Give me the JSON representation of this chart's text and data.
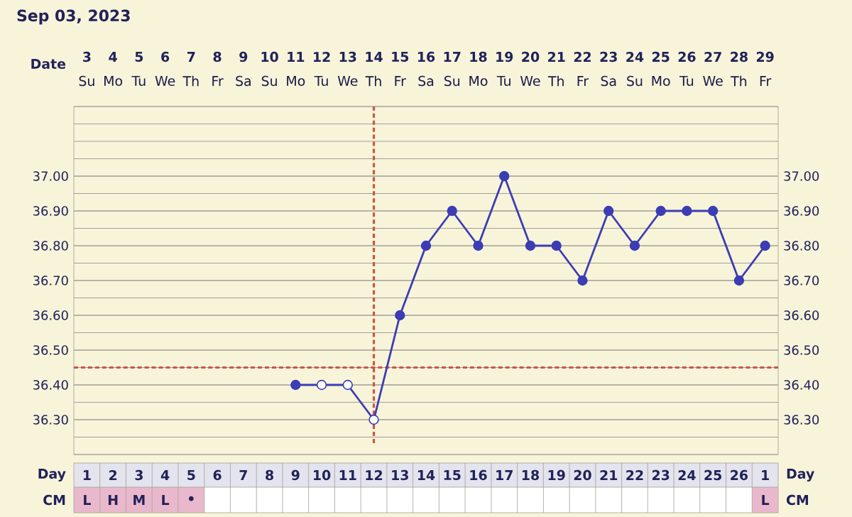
{
  "chart_data": {
    "type": "line",
    "title": "Sep 03, 2023",
    "categories": [
      "3",
      "4",
      "5",
      "6",
      "7",
      "8",
      "9",
      "10",
      "11",
      "12",
      "13",
      "14",
      "15",
      "16",
      "17",
      "18",
      "19",
      "20",
      "21",
      "22",
      "23",
      "24",
      "25",
      "26",
      "27",
      "28",
      "29"
    ],
    "series": [
      {
        "color": "#3c3cb4",
        "marker": "circle",
        "values": [
          null,
          null,
          null,
          null,
          null,
          null,
          null,
          null,
          36.4,
          36.4,
          36.4,
          36.3,
          36.6,
          36.8,
          36.9,
          36.8,
          37.0,
          36.8,
          36.8,
          36.7,
          36.9,
          36.8,
          36.9,
          36.9,
          36.9,
          36.7,
          36.8
        ],
        "colors": [
          "#3c3cb4",
          "#3c3cb4",
          "#3c3cb4",
          "#3c3cb4",
          "#3c3cb4",
          "#3c3cb4",
          "#3c3cb4",
          "#3c3cb4",
          "#3c3cb4",
          "#ffffff",
          "#ffffff",
          "#ffffff",
          "#3c3cb4",
          "#3c3cb4",
          "#3c3cb4",
          "#3c3cb4",
          "#3c3cb4",
          "#3c3cb4",
          "#3c3cb4",
          "#3c3cb4",
          "#3c3cb4",
          "#3c3cb4",
          "#3c3cb4",
          "#3c3cb4",
          "#3c3cb4",
          "#3c3cb4",
          "#3c3cb4"
        ]
      }
    ],
    "ylim": [
      36.2,
      37.2
    ],
    "yticks": [
      {
        "value": 36.3,
        "label": "36.30"
      },
      {
        "value": 36.4,
        "label": "36.40"
      },
      {
        "value": 36.5,
        "label": "36.50"
      },
      {
        "value": 36.6,
        "label": "36.60"
      },
      {
        "value": 36.7,
        "label": "36.70"
      },
      {
        "value": 36.8,
        "label": "36.80"
      },
      {
        "value": 36.9,
        "label": "36.90"
      },
      {
        "value": 37.0,
        "label": "37.00"
      }
    ],
    "y2lim": [
      36.2,
      37.2
    ],
    "y2ticks": [
      {
        "value": 36.3,
        "label": "36.30"
      },
      {
        "value": 36.4,
        "label": "36.40"
      },
      {
        "value": 36.5,
        "label": "36.50"
      },
      {
        "value": 36.6,
        "label": "36.60"
      },
      {
        "value": 36.7,
        "label": "36.70"
      },
      {
        "value": 36.8,
        "label": "36.80"
      },
      {
        "value": 36.9,
        "label": "36.90"
      },
      {
        "value": 37.0,
        "label": "37.00"
      }
    ],
    "grid": true,
    "ref_lines": [
      {
        "axis": "y",
        "value": 36.45,
        "color": "#cc5544",
        "line_style": "dashed"
      },
      {
        "axis": "x",
        "value": "14",
        "color": "#cc5544",
        "line_style": "dashed"
      }
    ],
    "annotations": [
      "Date",
      "Su",
      "Mo",
      "Tu",
      "We",
      "Th",
      "Fr",
      "Sa",
      "Su",
      "Mo",
      "Tu",
      "We",
      "Th",
      "Fr",
      "Sa",
      "Su",
      "Mo",
      "Tu",
      "We",
      "Th",
      "Fr",
      "Sa",
      "Su",
      "Mo",
      "Tu",
      "We",
      "Th",
      "Fr",
      "Day",
      "Day",
      "1",
      "2",
      "3",
      "4",
      "5",
      "6",
      "7",
      "8",
      "9",
      "10",
      "11",
      "12",
      "13",
      "14",
      "15",
      "16",
      "17",
      "18",
      "19",
      "20",
      "21",
      "22",
      "23",
      "24",
      "25",
      "26",
      "1",
      "CM",
      "CM",
      "L",
      "H",
      "M",
      "L",
      "•",
      "L"
    ]
  }
}
